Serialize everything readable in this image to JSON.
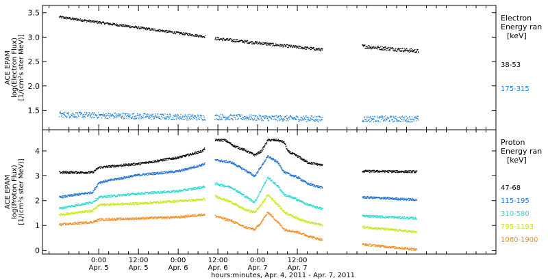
{
  "chart_data": [
    {
      "type": "scatter",
      "panel": "electron",
      "ylabel_lines": [
        "ACE EPAM",
        "log(Electron Flux)",
        "[1/(cm²s ster MeV)]"
      ],
      "ylim": [
        1.1,
        3.65
      ],
      "yticks": [
        1.5,
        2.0,
        2.5,
        3.0,
        3.5
      ],
      "ytick_labels": [
        "1.5",
        "2.0",
        "2.5",
        "3.0",
        "3.5"
      ],
      "legend_title_lines": [
        "Electron",
        "Energy ran",
        "[keV]"
      ],
      "series": [
        {
          "name": "38-53",
          "color": "#000000",
          "segments": [
            {
              "x0": -12.0,
              "x1": 32.0,
              "y0": 3.42,
              "y1": 3.02,
              "noise": 0.025
            },
            {
              "x0": 35.0,
              "x1": 67.5,
              "y0": 2.98,
              "y1": 2.75,
              "noise": 0.03
            },
            {
              "x0": 79.5,
              "x1": 96.5,
              "y0": 2.82,
              "y1": 2.72,
              "noise": 0.04
            }
          ]
        },
        {
          "name": "175-315",
          "color": "#1a7fd6",
          "segments": [
            {
              "x0": -12.0,
              "x1": 32.0,
              "y0": 1.42,
              "y1": 1.36,
              "noise": 0.06
            },
            {
              "x0": 35.0,
              "x1": 67.5,
              "y0": 1.37,
              "y1": 1.33,
              "noise": 0.06
            },
            {
              "x0": 79.5,
              "x1": 96.5,
              "y0": 1.33,
              "y1": 1.33,
              "noise": 0.06
            }
          ]
        }
      ]
    },
    {
      "type": "scatter",
      "panel": "proton",
      "ylabel_lines": [
        "ACE EPAM",
        "log(Proton Flux)",
        "[1/(cm²s ster MeV)]"
      ],
      "ylim": [
        -0.15,
        4.85
      ],
      "yticks": [
        0,
        1,
        2,
        3,
        4
      ],
      "ytick_labels": [
        "0",
        "1",
        "2",
        "3",
        "4"
      ],
      "legend_title_lines": [
        "Proton",
        "Energy ran",
        "[keV]"
      ],
      "series": [
        {
          "name": "47-68",
          "color": "#000000",
          "profile": [
            [
              -12,
              3.15
            ],
            [
              -2,
              3.15
            ],
            [
              0,
              3.35
            ],
            [
              12,
              3.5
            ],
            [
              24,
              3.75
            ],
            [
              31,
              4.0
            ],
            [
              35,
              4.45
            ],
            [
              38,
              4.45
            ],
            [
              41,
              4.2
            ],
            [
              44,
              4.05
            ],
            [
              47,
              3.85
            ],
            [
              49,
              4.0
            ],
            [
              51,
              4.45
            ],
            [
              54,
              4.45
            ],
            [
              56,
              4.35
            ],
            [
              57,
              4.0
            ],
            [
              60,
              3.8
            ],
            [
              63,
              3.55
            ],
            [
              67,
              3.45
            ],
            [
              80,
              3.2
            ],
            [
              96,
              3.18
            ]
          ]
        },
        {
          "name": "115-195",
          "color": "#1a6fd0",
          "profile": [
            [
              -12,
              2.15
            ],
            [
              -2,
              2.35
            ],
            [
              0,
              2.75
            ],
            [
              12,
              3.05
            ],
            [
              24,
              3.2
            ],
            [
              31,
              3.45
            ],
            [
              35,
              3.65
            ],
            [
              40,
              3.55
            ],
            [
              44,
              3.25
            ],
            [
              47,
              3.0
            ],
            [
              49,
              3.4
            ],
            [
              51,
              3.8
            ],
            [
              54,
              3.55
            ],
            [
              56,
              3.15
            ],
            [
              60,
              2.95
            ],
            [
              63,
              2.7
            ],
            [
              67,
              2.55
            ],
            [
              80,
              2.15
            ],
            [
              96,
              2.05
            ]
          ]
        },
        {
          "name": "310-580",
          "color": "#25d8d0",
          "profile": [
            [
              -12,
              1.7
            ],
            [
              -2,
              1.95
            ],
            [
              0,
              2.15
            ],
            [
              12,
              2.3
            ],
            [
              24,
              2.4
            ],
            [
              31,
              2.55
            ],
            [
              35,
              2.7
            ],
            [
              40,
              2.55
            ],
            [
              44,
              2.2
            ],
            [
              47,
              1.95
            ],
            [
              49,
              2.45
            ],
            [
              51,
              2.95
            ],
            [
              54,
              2.6
            ],
            [
              56,
              2.25
            ],
            [
              60,
              2.05
            ],
            [
              63,
              1.85
            ],
            [
              67,
              1.7
            ],
            [
              80,
              1.4
            ],
            [
              96,
              1.3
            ]
          ]
        },
        {
          "name": "795-1193",
          "color": "#c8e614",
          "profile": [
            [
              -12,
              1.45
            ],
            [
              -2,
              1.6
            ],
            [
              0,
              1.85
            ],
            [
              12,
              1.9
            ],
            [
              24,
              2.0
            ],
            [
              31,
              2.05
            ],
            [
              35,
              2.2
            ],
            [
              40,
              1.95
            ],
            [
              44,
              1.65
            ],
            [
              47,
              1.55
            ],
            [
              49,
              1.85
            ],
            [
              51,
              2.25
            ],
            [
              54,
              1.85
            ],
            [
              56,
              1.55
            ],
            [
              60,
              1.3
            ],
            [
              63,
              1.15
            ],
            [
              67,
              1.05
            ],
            [
              80,
              0.95
            ],
            [
              96,
              0.75
            ]
          ]
        },
        {
          "name": "1060-1900",
          "color": "#f08a1e",
          "profile": [
            [
              -12,
              1.05
            ],
            [
              -2,
              1.15
            ],
            [
              0,
              1.25
            ],
            [
              12,
              1.3
            ],
            [
              24,
              1.35
            ],
            [
              31,
              1.45
            ],
            [
              35,
              1.4
            ],
            [
              40,
              1.2
            ],
            [
              44,
              0.95
            ],
            [
              47,
              0.85
            ],
            [
              49,
              1.15
            ],
            [
              51,
              1.55
            ],
            [
              54,
              1.15
            ],
            [
              56,
              0.85
            ],
            [
              60,
              0.75
            ],
            [
              63,
              0.6
            ],
            [
              67,
              0.45
            ],
            [
              80,
              0.25
            ],
            [
              96,
              0.05
            ]
          ]
        }
      ],
      "gaps": [
        [
          32,
          35
        ],
        [
          67.5,
          79.5
        ]
      ]
    }
  ],
  "x_axis": {
    "range_hours": [
      -17,
      120
    ],
    "label": "hours:minutes, Apr.  4, 2011 - Apr.  7, 2011",
    "ticks": [
      {
        "hour": 0,
        "time": "0:00",
        "date": "Apr. 5"
      },
      {
        "hour": 12,
        "time": "12:00",
        "date": "Apr. 5"
      },
      {
        "hour": 24,
        "time": "0:00",
        "date": "Apr. 6"
      },
      {
        "hour": 36,
        "time": "12:00",
        "date": "Apr. 6"
      },
      {
        "hour": 48,
        "time": "0:00",
        "date": "Apr. 7"
      },
      {
        "hour": 60,
        "time": "12:00",
        "date": "Apr. 7"
      }
    ]
  }
}
